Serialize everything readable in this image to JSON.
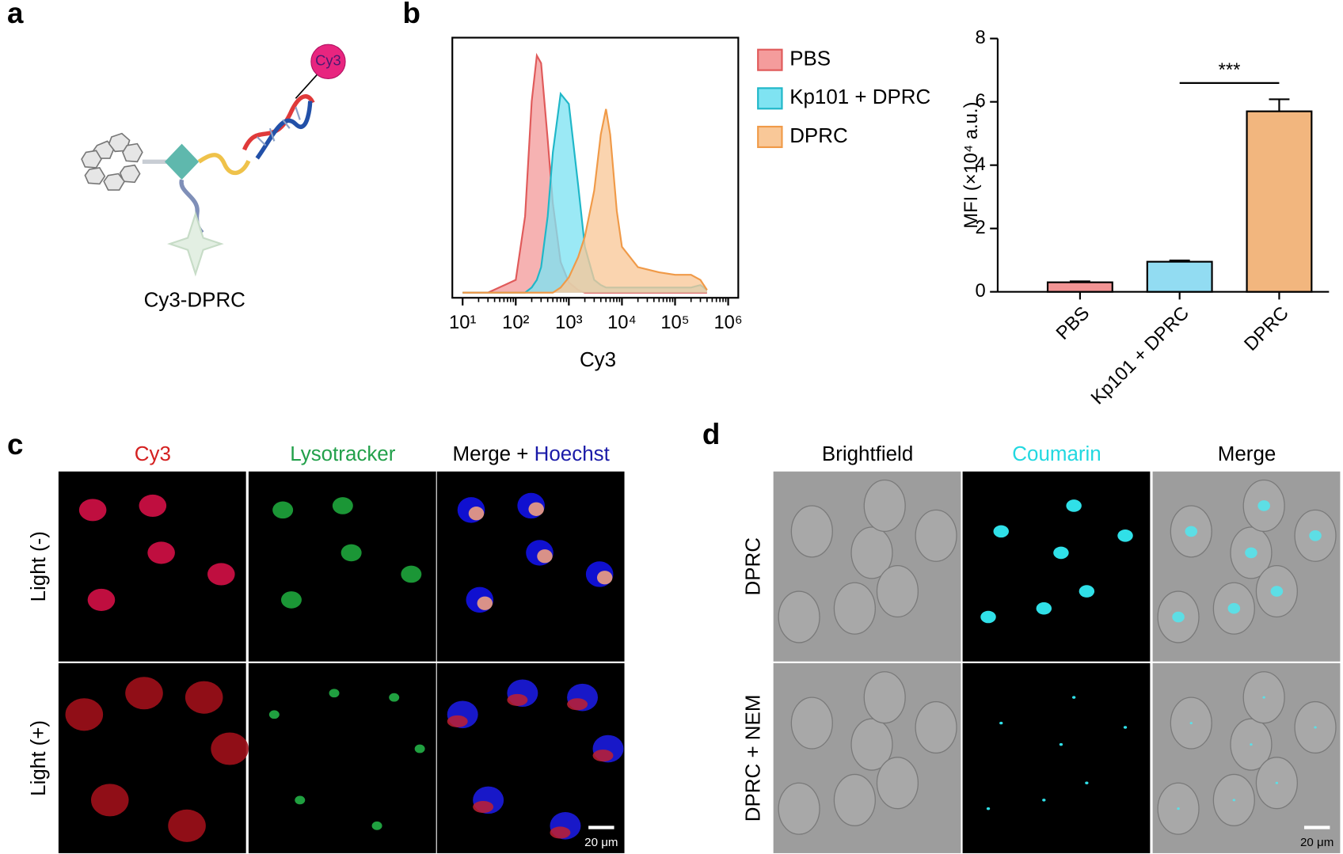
{
  "figure": {
    "panel_labels": [
      "a",
      "b",
      "c",
      "d"
    ],
    "a": {
      "dye": "Cy3",
      "caption": "Cy3-DPRC"
    },
    "c": {
      "headers": [
        [
          {
            "text": "Cy3",
            "color": "#d42020"
          }
        ],
        [
          {
            "text": "Lysotracker",
            "color": "#22a04a"
          }
        ],
        [
          {
            "text": "Merge + ",
            "color": "#000000"
          },
          {
            "text": "Hoechst",
            "color": "#1a1aa8"
          }
        ]
      ],
      "rows": [
        "Light (-)",
        "Light (+)"
      ],
      "scale_bar": "20 μm"
    },
    "d": {
      "headers": [
        [
          {
            "text": "Brightfield",
            "color": "#000000"
          }
        ],
        [
          {
            "text": "Coumarin",
            "color": "#22d8e0"
          }
        ],
        [
          {
            "text": "Merge",
            "color": "#000000"
          }
        ]
      ],
      "rows": [
        "DPRC",
        "DPRC + NEM"
      ],
      "scale_bar": "20 μm"
    }
  },
  "chart_data": [
    {
      "type": "area",
      "xlabel": "Cy3",
      "xscale": "log",
      "x": [
        10,
        30,
        100,
        150,
        200,
        250,
        300,
        400,
        500,
        700,
        1000,
        1500,
        2000,
        3000,
        4000,
        5000,
        6000,
        8000,
        10000,
        20000,
        50000,
        100000,
        200000,
        300000,
        400000
      ],
      "series": [
        {
          "name": "PBS",
          "color": "#f49c9c",
          "edge": "#e05a5a",
          "values": [
            0,
            0,
            5,
            30,
            75,
            93,
            90,
            60,
            35,
            12,
            4,
            1,
            0,
            0,
            0,
            0,
            0,
            0,
            0,
            0,
            0,
            0,
            0,
            0,
            0
          ]
        },
        {
          "name": "Kp101 + DPRC",
          "color": "#7fe3f2",
          "edge": "#1fb7c8",
          "values": [
            0,
            0,
            0,
            0,
            2,
            5,
            10,
            30,
            55,
            78,
            74,
            42,
            18,
            5,
            3,
            2,
            2,
            2,
            2,
            2,
            2,
            2,
            2,
            3,
            1
          ]
        },
        {
          "name": "DPRC",
          "color": "#f9c898",
          "edge": "#f09a48",
          "values": [
            0,
            0,
            0,
            0,
            0,
            0,
            0,
            0,
            0,
            2,
            6,
            14,
            22,
            40,
            62,
            72,
            62,
            32,
            18,
            10,
            8,
            7,
            7,
            5,
            1
          ]
        }
      ],
      "xlim": [
        6.4,
        1550000
      ],
      "xticks": [
        {
          "value": 10,
          "label": "10¹"
        },
        {
          "value": 100,
          "label": "10²"
        },
        {
          "value": 1000,
          "label": "10³"
        },
        {
          "value": 10000,
          "label": "10⁴"
        },
        {
          "value": 100000,
          "label": "10⁵"
        },
        {
          "value": 1000000,
          "label": "10⁶"
        }
      ],
      "ylim": [
        0,
        100
      ],
      "legend": "right"
    },
    {
      "type": "bar",
      "ylabel": "MFI (×10⁴ a.u.)",
      "categories": [
        "PBS",
        "Kp101 + DPRC",
        "DPRC"
      ],
      "values": [
        0.3,
        0.95,
        5.7
      ],
      "errors": [
        0.03,
        0.04,
        0.38
      ],
      "colors": [
        "#f29494",
        "#92dcf2",
        "#f2b67e"
      ],
      "ylim": [
        0,
        8
      ],
      "yticks": [
        0,
        2,
        4,
        6,
        8
      ],
      "annotation": "***"
    }
  ]
}
